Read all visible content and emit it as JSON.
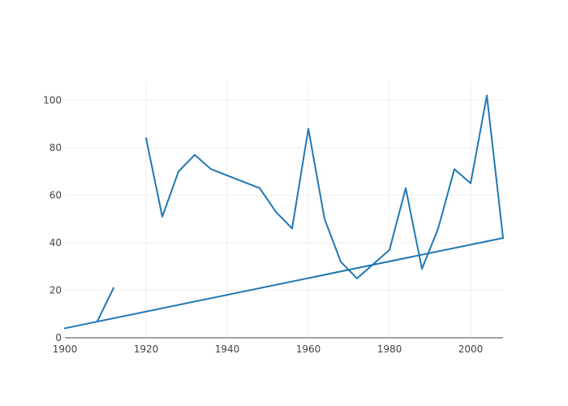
{
  "chart_data": {
    "type": "line",
    "title": "",
    "xlabel": "",
    "ylabel": "",
    "xlim": [
      1900,
      2008
    ],
    "ylim": [
      0,
      108
    ],
    "xticks": [
      1900,
      1920,
      1940,
      1960,
      1980,
      2000
    ],
    "yticks": [
      0,
      20,
      40,
      60,
      80,
      100
    ],
    "grid": true,
    "legend": "none",
    "colors": {
      "series": "#1f77b4",
      "grid": "#eeeeee",
      "axis": "#444444",
      "text": "#444444"
    },
    "series": [
      {
        "x": [
          1908,
          1912,
          null,
          1920,
          1924,
          1928,
          1932,
          1936,
          1948,
          1952,
          1956,
          1960,
          1964,
          1968,
          1972,
          1976,
          1980,
          1984,
          1988,
          1992,
          1996,
          2000,
          2004,
          2008
        ],
        "y": [
          7,
          21,
          null,
          84,
          51,
          70,
          77,
          71,
          63,
          53,
          46,
          88,
          50,
          32,
          25,
          31,
          37,
          63,
          29,
          46,
          71,
          65,
          102,
          42
        ]
      },
      {
        "x": [
          1900,
          2008
        ],
        "y": [
          4,
          42
        ]
      }
    ]
  }
}
